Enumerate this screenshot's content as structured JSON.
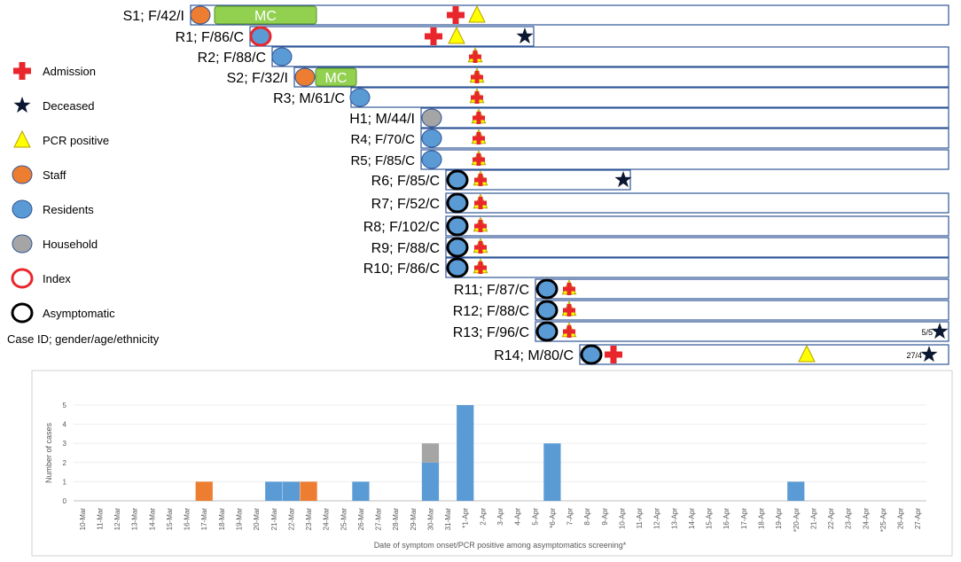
{
  "timeline": {
    "legend": {
      "items": [
        {
          "key": "admission",
          "label": "Admission",
          "icon": "red-cross-icon"
        },
        {
          "key": "deceased",
          "label": "Deceased",
          "icon": "black-star-icon"
        },
        {
          "key": "pcr",
          "label": "PCR positive",
          "icon": "yellow-triangle-icon"
        },
        {
          "key": "staff",
          "label": "Staff",
          "icon": "orange-circle-icon"
        },
        {
          "key": "residents",
          "label": "Residents",
          "icon": "blue-circle-icon"
        },
        {
          "key": "household",
          "label": "Household",
          "icon": "grey-circle-icon"
        },
        {
          "key": "index",
          "label": "Index",
          "icon": "red-ring-icon"
        },
        {
          "key": "asymptomatic",
          "label": "Asymptomatic",
          "icon": "black-ring-icon"
        }
      ],
      "caption": "Case ID; gender/age/ethnicity"
    },
    "mc_label": "MC",
    "cases": [
      {
        "label": "S1; F/42/I",
        "type": "staff",
        "mc": true,
        "admission": true,
        "pcr": true
      },
      {
        "label": "R1; F/86/C",
        "type": "index",
        "admission": true,
        "pcr": true,
        "deceased": true
      },
      {
        "label": "R2; F/88/C",
        "type": "residents",
        "admission": true,
        "pcr": true
      },
      {
        "label": "S2; F/32/I",
        "type": "staff",
        "mc": true,
        "admission": true,
        "pcr": true
      },
      {
        "label": "R3; M/61/C",
        "type": "residents",
        "admission": true,
        "pcr": true
      },
      {
        "label": "H1; M/44/I",
        "type": "household",
        "admission": true,
        "pcr": true
      },
      {
        "label": "R4; F/70/C",
        "type": "residents",
        "admission": true,
        "pcr": true
      },
      {
        "label": "R5; F/85/C",
        "type": "residents",
        "admission": true,
        "pcr": true
      },
      {
        "label": "R6; F/85/C",
        "type": "asymptomatic",
        "admission": true,
        "pcr": true,
        "deceased": true
      },
      {
        "label": "R7; F/52/C",
        "type": "asymptomatic",
        "admission": true,
        "pcr": true
      },
      {
        "label": "R8; F/102/C",
        "type": "asymptomatic",
        "admission": true,
        "pcr": true
      },
      {
        "label": "R9; F/88/C",
        "type": "asymptomatic",
        "admission": true,
        "pcr": true
      },
      {
        "label": "R10; F/86/C",
        "type": "asymptomatic",
        "admission": true,
        "pcr": true
      },
      {
        "label": "R11; F/87/C",
        "type": "asymptomatic",
        "admission": true,
        "pcr": true
      },
      {
        "label": "R12; F/88/C",
        "type": "asymptomatic",
        "admission": true,
        "pcr": true
      },
      {
        "label": "R13; F/96/C",
        "type": "asymptomatic",
        "admission": true,
        "pcr": true,
        "deceased": true,
        "deceased_label": "5/5"
      },
      {
        "label": "R14; M/80/C",
        "type": "asymptomatic",
        "admission": true,
        "pcr": true,
        "deceased": true,
        "deceased_label": "27/4"
      }
    ]
  },
  "chart_data": {
    "type": "bar",
    "stacked": true,
    "title": "",
    "xlabel": "Date of symptom onset/PCR positive among asymptomatics screening*",
    "ylabel": "Number of cases",
    "ylim": [
      0,
      5
    ],
    "yticks": [
      "0",
      "1",
      "2",
      "3",
      "4",
      "5"
    ],
    "categories": [
      "10-Mar",
      "11-Mar",
      "12-Mar",
      "13-Mar",
      "14-Mar",
      "15-Mar",
      "16-Mar",
      "17-Mar",
      "18-Mar",
      "19-Mar",
      "20-Mar",
      "21-Mar",
      "22-Mar",
      "23-Mar",
      "24-Mar",
      "25-Mar",
      "26-Mar",
      "27-Mar",
      "28-Mar",
      "29-Mar",
      "30-Mar",
      "31-Mar",
      "*1-Apr",
      "2-Apr",
      "3-Apr",
      "4-Apr",
      "5-Apr",
      "*6-Apr",
      "7-Apr",
      "8-Apr",
      "9-Apr",
      "10-Apr",
      "11-Apr",
      "12-Apr",
      "13-Apr",
      "14-Apr",
      "15-Apr",
      "16-Apr",
      "17-Apr",
      "18-Apr",
      "19-Apr",
      "*20-Apr",
      "21-Apr",
      "22-Apr",
      "23-Apr",
      "24-Apr",
      "*25-Apr",
      "26-Apr",
      "27-Apr"
    ],
    "series": [
      {
        "name": "Residents",
        "color": "#5b9bd5",
        "values": [
          0,
          0,
          0,
          0,
          0,
          0,
          0,
          0,
          0,
          0,
          0,
          1,
          1,
          0,
          0,
          0,
          1,
          0,
          0,
          0,
          2,
          0,
          5,
          0,
          0,
          0,
          0,
          3,
          0,
          0,
          0,
          0,
          0,
          0,
          0,
          0,
          0,
          0,
          0,
          0,
          0,
          1,
          0,
          0,
          0,
          0,
          0,
          0,
          0
        ]
      },
      {
        "name": "Household",
        "color": "#a5a5a5",
        "values": [
          0,
          0,
          0,
          0,
          0,
          0,
          0,
          0,
          0,
          0,
          0,
          0,
          0,
          0,
          0,
          0,
          0,
          0,
          0,
          0,
          1,
          0,
          0,
          0,
          0,
          0,
          0,
          0,
          0,
          0,
          0,
          0,
          0,
          0,
          0,
          0,
          0,
          0,
          0,
          0,
          0,
          0,
          0,
          0,
          0,
          0,
          0,
          0,
          0
        ]
      },
      {
        "name": "Staff",
        "color": "#ed7d31",
        "values": [
          0,
          0,
          0,
          0,
          0,
          0,
          0,
          1,
          0,
          0,
          0,
          0,
          0,
          1,
          0,
          0,
          0,
          0,
          0,
          0,
          0,
          0,
          0,
          0,
          0,
          0,
          0,
          0,
          0,
          0,
          0,
          0,
          0,
          0,
          0,
          0,
          0,
          0,
          0,
          0,
          0,
          0,
          0,
          0,
          0,
          0,
          0,
          0,
          0
        ]
      }
    ]
  },
  "colors": {
    "staff": "#ed7d31",
    "residents": "#5b9bd5",
    "household": "#a5a5a5",
    "admission": "#e8262b",
    "pcr": "#ffff00",
    "mc": "#92d050",
    "bar_border": "#2f5597"
  }
}
